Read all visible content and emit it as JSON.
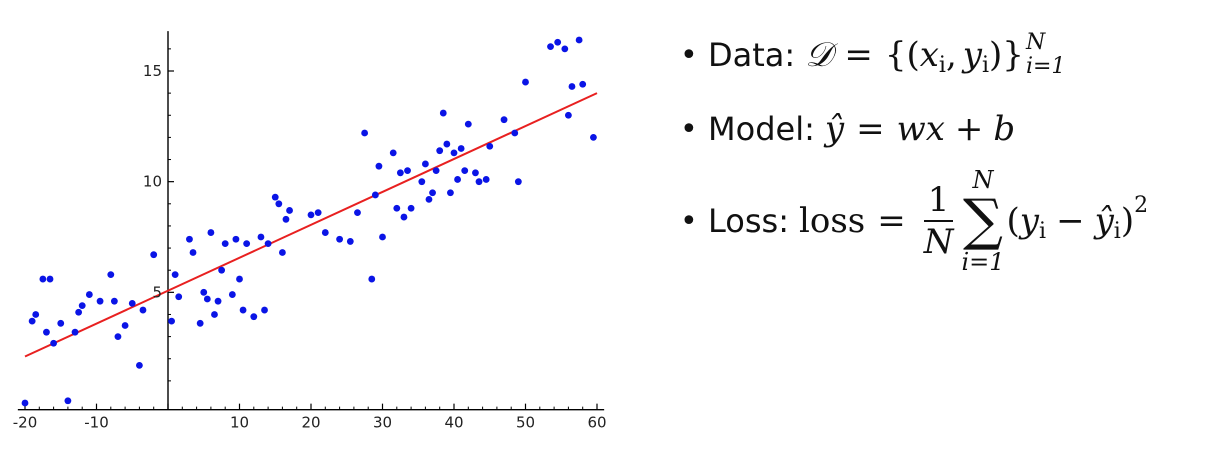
{
  "chart_data": {
    "type": "scatter",
    "title": "",
    "xlabel": "",
    "ylabel": "",
    "xlim": [
      -21,
      61
    ],
    "ylim": [
      -0.3,
      16.8
    ],
    "x_ticks": [
      -20,
      -10,
      0,
      10,
      20,
      30,
      40,
      50,
      60
    ],
    "x_tick_labels": [
      "-20",
      "-10",
      "",
      "10",
      "20",
      "30",
      "40",
      "50",
      "60"
    ],
    "y_ticks": [
      5,
      10,
      15
    ],
    "y_tick_labels": [
      "5",
      "10",
      "15"
    ],
    "grid": false,
    "points_color": "#0a14e6",
    "fit_color": "#e82020",
    "points": [
      [
        -20,
        0
      ],
      [
        -19,
        3.7
      ],
      [
        -18.5,
        4.0
      ],
      [
        -17.5,
        5.6
      ],
      [
        -17,
        3.2
      ],
      [
        -16.5,
        5.6
      ],
      [
        -16,
        2.7
      ],
      [
        -15,
        3.6
      ],
      [
        -14,
        0.1
      ],
      [
        -13,
        3.2
      ],
      [
        -12.5,
        4.1
      ],
      [
        -12,
        4.4
      ],
      [
        -11,
        4.9
      ],
      [
        -9.5,
        4.6
      ],
      [
        -8,
        5.8
      ],
      [
        -7.5,
        4.6
      ],
      [
        -7,
        3.0
      ],
      [
        -6,
        3.5
      ],
      [
        -5,
        4.5
      ],
      [
        -4,
        1.7
      ],
      [
        -3.5,
        4.2
      ],
      [
        -2,
        6.7
      ],
      [
        0.5,
        3.7
      ],
      [
        1,
        5.8
      ],
      [
        1.5,
        4.8
      ],
      [
        3,
        7.4
      ],
      [
        3.5,
        6.8
      ],
      [
        4.5,
        3.6
      ],
      [
        5,
        5.0
      ],
      [
        5.5,
        4.7
      ],
      [
        6,
        7.7
      ],
      [
        6.5,
        4.0
      ],
      [
        7,
        4.6
      ],
      [
        7.5,
        6.0
      ],
      [
        8,
        7.2
      ],
      [
        9,
        4.9
      ],
      [
        9.5,
        7.4
      ],
      [
        10,
        5.6
      ],
      [
        10.5,
        4.2
      ],
      [
        11,
        7.2
      ],
      [
        12,
        3.9
      ],
      [
        13,
        7.5
      ],
      [
        13.5,
        4.2
      ],
      [
        14,
        7.2
      ],
      [
        15,
        9.3
      ],
      [
        15.5,
        9.0
      ],
      [
        16,
        6.8
      ],
      [
        16.5,
        8.3
      ],
      [
        17,
        8.7
      ],
      [
        20,
        8.5
      ],
      [
        21,
        8.6
      ],
      [
        22,
        7.7
      ],
      [
        24,
        7.4
      ],
      [
        25.5,
        7.3
      ],
      [
        26.5,
        8.6
      ],
      [
        27.5,
        12.2
      ],
      [
        28.5,
        5.6
      ],
      [
        29,
        9.4
      ],
      [
        29.5,
        10.7
      ],
      [
        30,
        7.5
      ],
      [
        31.5,
        11.3
      ],
      [
        32,
        8.8
      ],
      [
        32.5,
        10.4
      ],
      [
        33,
        8.4
      ],
      [
        33.5,
        10.5
      ],
      [
        34,
        8.8
      ],
      [
        35.5,
        10.0
      ],
      [
        36,
        10.8
      ],
      [
        36.5,
        9.2
      ],
      [
        37,
        9.5
      ],
      [
        37.5,
        10.5
      ],
      [
        38,
        11.4
      ],
      [
        38.5,
        13.1
      ],
      [
        39,
        11.7
      ],
      [
        39.5,
        9.5
      ],
      [
        40,
        11.3
      ],
      [
        40.5,
        10.1
      ],
      [
        41,
        11.5
      ],
      [
        41.5,
        10.5
      ],
      [
        42,
        12.6
      ],
      [
        43,
        10.4
      ],
      [
        43.5,
        10.0
      ],
      [
        44.5,
        10.1
      ],
      [
        45,
        11.6
      ],
      [
        47,
        12.8
      ],
      [
        48.5,
        12.2
      ],
      [
        49,
        10.0
      ],
      [
        50,
        14.5
      ],
      [
        53.5,
        16.1
      ],
      [
        54.5,
        16.3
      ],
      [
        55.5,
        16.0
      ],
      [
        56,
        13.0
      ],
      [
        56.5,
        14.3
      ],
      [
        57.5,
        16.4
      ],
      [
        58,
        14.4
      ],
      [
        59.5,
        12.0
      ]
    ],
    "fit_line": {
      "x": [
        -20,
        60
      ],
      "y": [
        2.1,
        14.0
      ]
    }
  },
  "bullets": {
    "data_label": "Data:",
    "model_label": "Model:",
    "loss_label": "Loss:",
    "data_math": {
      "D": "𝒟",
      "eq": "=",
      "left_brace": "{(",
      "x": "x",
      "i1": "i",
      "comma": ",",
      "y": "y",
      "i2": "i",
      "right_brace": ")}",
      "sup_N": "N",
      "sub_i1": "i=1"
    },
    "model_math": {
      "yhat": "ŷ",
      "eq": "=",
      "w": "w",
      "x": "x",
      "plus": "+",
      "b": "b"
    },
    "loss_math": {
      "loss": "loss",
      "eq": "=",
      "num": "1",
      "den": "N",
      "sigma": "∑",
      "sigma_top": "N",
      "sigma_bot": "i=1",
      "open": "(",
      "y": "y",
      "i1": "i",
      "minus": "−",
      "yhat": "ŷ",
      "i2": "i",
      "close": ")",
      "sq": "2"
    }
  }
}
